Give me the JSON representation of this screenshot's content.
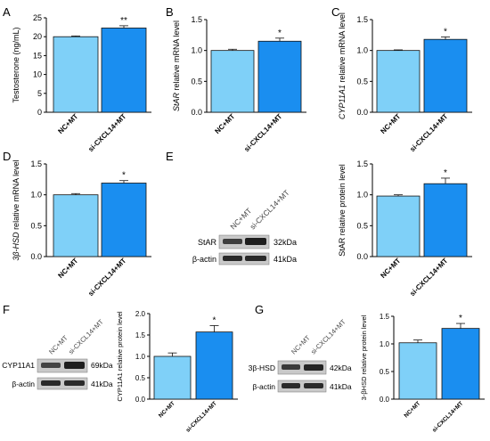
{
  "colors": {
    "nc": "#7fd0f8",
    "si": "#1a8ef0",
    "axis": "#000000"
  },
  "panels": [
    {
      "letter": "A"
    },
    {
      "letter": "B"
    },
    {
      "letter": "C"
    },
    {
      "letter": "D"
    },
    {
      "letter": "E"
    },
    {
      "letter": "F"
    },
    {
      "letter": "G"
    }
  ],
  "blots": {
    "E": {
      "lanes": [
        "NC+MT",
        "si-CXCL14+MT"
      ],
      "rows": [
        {
          "protein": "StAR",
          "size": "32kDa"
        },
        {
          "protein": "β-actin",
          "size": "41kDa"
        }
      ]
    },
    "F": {
      "lanes": [
        "NC+MT",
        "si-CXCL14+MT"
      ],
      "rows": [
        {
          "protein": "CYP11A1",
          "size": "69kDa"
        },
        {
          "protein": "β-actin",
          "size": "41kDa"
        }
      ]
    },
    "G": {
      "lanes": [
        "NC+MT",
        "si-CXCL14+MT"
      ],
      "rows": [
        {
          "protein": "3β-HSD",
          "size": "42kDa"
        },
        {
          "protein": "β-actin",
          "size": "41kDa"
        }
      ]
    }
  },
  "chart_data": [
    {
      "panel": "A",
      "type": "bar",
      "categories": [
        "NC+MT",
        "si-CXCL14+MT"
      ],
      "values": [
        20.0,
        22.3
      ],
      "errors": [
        0.2,
        0.6
      ],
      "ylabel": "Testosterone  (ng/mL)",
      "ylim": [
        0,
        25
      ],
      "yticks": [
        0,
        5,
        10,
        15,
        20,
        25
      ],
      "yticklabels": [
        "0",
        "5",
        "10",
        "15",
        "20",
        "25"
      ],
      "significance": "**"
    },
    {
      "panel": "B",
      "type": "bar",
      "categories": [
        "NC+MT",
        "si-CXCL14+MT"
      ],
      "values": [
        1.0,
        1.15
      ],
      "errors": [
        0.02,
        0.05
      ],
      "ylabel": "StAR relative mRNA level",
      "ylabel_italic": "StAR",
      "ylabel_rest": " relative mRNA level",
      "ylim": [
        0,
        1.5
      ],
      "yticks": [
        0,
        0.5,
        1.0,
        1.5
      ],
      "yticklabels": [
        "0.0",
        "0.5",
        "1.0",
        "1.5"
      ],
      "significance": "*"
    },
    {
      "panel": "C",
      "type": "bar",
      "categories": [
        "NC+MT",
        "si-CXCL14+MT"
      ],
      "values": [
        1.0,
        1.18
      ],
      "errors": [
        0.01,
        0.04
      ],
      "ylabel": "CYP11A1 relative mRNA level",
      "ylabel_italic": "CYP11A1",
      "ylabel_rest": " relative mRNA level",
      "ylim": [
        0,
        1.5
      ],
      "yticks": [
        0,
        0.5,
        1.0,
        1.5
      ],
      "yticklabels": [
        "0.0",
        "0.5",
        "1.0",
        "1.5"
      ],
      "significance": "*"
    },
    {
      "panel": "D",
      "type": "bar",
      "categories": [
        "NC+MT",
        "si-CXCL14+MT"
      ],
      "values": [
        1.0,
        1.19
      ],
      "errors": [
        0.02,
        0.04
      ],
      "ylabel": "3β-HSD relative mRNA level",
      "ylabel_italic": "3β-HSD",
      "ylabel_rest": " relative mRNA level",
      "ylim": [
        0,
        1.5
      ],
      "yticks": [
        0,
        0.5,
        1.0,
        1.5
      ],
      "yticklabels": [
        "0.0",
        "0.5",
        "1.0",
        "1.5"
      ],
      "significance": "*"
    },
    {
      "panel": "E",
      "type": "bar",
      "categories": [
        "NC+MT",
        "si-CXCL14+MT"
      ],
      "values": [
        0.98,
        1.18
      ],
      "errors": [
        0.02,
        0.09
      ],
      "ylabel": "StAR relative protein level",
      "ylim": [
        0,
        1.5
      ],
      "yticks": [
        0,
        0.5,
        1.0,
        1.5
      ],
      "yticklabels": [
        "0.0",
        "0.5",
        "1.0",
        "1.5"
      ],
      "significance": "*"
    },
    {
      "panel": "F",
      "type": "bar",
      "categories": [
        "NC+MT",
        "si-CXCL14+MT"
      ],
      "values": [
        1.0,
        1.57
      ],
      "errors": [
        0.08,
        0.15
      ],
      "ylabel": "CYP11A1 relative protein level",
      "ylim": [
        0,
        2.0
      ],
      "yticks": [
        0,
        0.5,
        1.0,
        1.5,
        2.0
      ],
      "yticklabels": [
        "0.0",
        "0.5",
        "1.0",
        "1.5",
        "2.0"
      ],
      "significance": "*"
    },
    {
      "panel": "G",
      "type": "bar",
      "categories": [
        "NC+MT",
        "si-CXCL14+MT"
      ],
      "values": [
        1.02,
        1.28
      ],
      "errors": [
        0.05,
        0.09
      ],
      "ylabel": "3-βHSD relative protein level",
      "ylim": [
        0,
        1.5
      ],
      "yticks": [
        0,
        0.5,
        1.0,
        1.5
      ],
      "yticklabels": [
        "0.0",
        "0.5",
        "1.0",
        "1.5"
      ],
      "significance": "*"
    }
  ]
}
